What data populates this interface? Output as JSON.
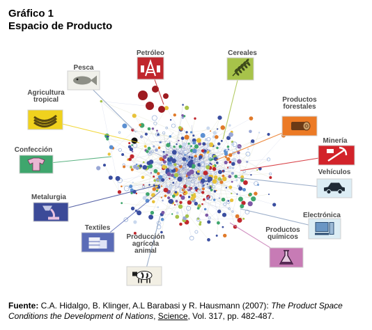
{
  "header": {
    "title": "Gráfico 1",
    "subtitle": "Espacio de Producto"
  },
  "categories": [
    {
      "id": "petroleo",
      "label": [
        "Petróleo"
      ],
      "icon": "oil-derrick-icon",
      "color": "#c0272d",
      "hub": [
        235,
        150
      ]
    },
    {
      "id": "cereales",
      "label": [
        "Cereales"
      ],
      "icon": "wheat-icon",
      "color": "#a7c34a",
      "hub": [
        320,
        200
      ]
    },
    {
      "id": "pesca",
      "label": [
        "Pesca"
      ],
      "icon": "fish-icon",
      "color": "#f0f0ea",
      "hub": [
        195,
        190
      ]
    },
    {
      "id": "agricultura",
      "label": [
        "Agricultura",
        "tropical"
      ],
      "icon": "banana-icon",
      "color": "#f0d21e",
      "hub": [
        200,
        205
      ]
    },
    {
      "id": "forestales",
      "label": [
        "Productos",
        "forestales"
      ],
      "icon": "log-icon",
      "color": "#ec7a25",
      "hub": [
        310,
        230
      ]
    },
    {
      "id": "confeccion",
      "label": [
        "Confección"
      ],
      "icon": "garment-icon",
      "color": "#3fa66d",
      "hub": [
        160,
        225
      ]
    },
    {
      "id": "mineria",
      "label": [
        "Minería"
      ],
      "icon": "mine-icon",
      "color": "#d2232a",
      "hub": [
        345,
        245
      ]
    },
    {
      "id": "vehiculos",
      "label": [
        "Vehículos"
      ],
      "icon": "car-icon",
      "color": "#dcedf5",
      "hub": [
        340,
        255
      ]
    },
    {
      "id": "metalurgia",
      "label": [
        "Metalurgia"
      ],
      "icon": "metal-pour-icon",
      "color": "#3c4a98",
      "hub": [
        230,
        265
      ]
    },
    {
      "id": "electronica",
      "label": [
        "Electrónica"
      ],
      "icon": "computer-icon",
      "color": "#dcedf5",
      "hub": [
        345,
        300
      ]
    },
    {
      "id": "textiles",
      "label": [
        "Textiles"
      ],
      "icon": "textile-bale-icon",
      "color": "#5b6cb7",
      "hub": [
        230,
        275
      ]
    },
    {
      "id": "quimicos",
      "label": [
        "Productos",
        "químicos"
      ],
      "icon": "flask-icon",
      "color": "#c77bb5",
      "hub": [
        330,
        320
      ]
    },
    {
      "id": "animal",
      "label": [
        "Producción",
        "agrícola",
        "animal"
      ],
      "icon": "cow-icon",
      "color": "#f2efe4",
      "hub": [
        230,
        310
      ]
    }
  ],
  "source": {
    "prefix": "Fuente:",
    "authors": " C.A. Hidalgo, B. Klinger, A.L Barabasi y R. Hausmann (2007): ",
    "work": "The Product Space Conditions the Development of Nations",
    "sep": ", ",
    "journal": "Science",
    "details": ", Vol. 317, pp. 482-487."
  }
}
